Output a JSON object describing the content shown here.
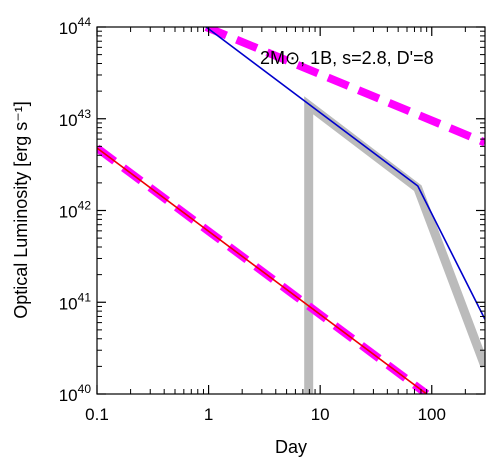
{
  "chart_data": {
    "type": "line",
    "title": "",
    "annotation": "2M⊙, 1B, s=2.8, D'=8",
    "xlabel": "Day",
    "ylabel": "Optical Luminosity [erg s⁻¹]",
    "xscale": "log",
    "yscale": "log",
    "xlim": [
      0.1,
      300
    ],
    "ylim": [
      1e+40,
      1e+44
    ],
    "x_ticks": [
      {
        "value": 0.1,
        "label": "0.1"
      },
      {
        "value": 1,
        "label": "1"
      },
      {
        "value": 10,
        "label": "10"
      },
      {
        "value": 100,
        "label": "100"
      }
    ],
    "y_ticks": [
      {
        "value": 1e+40,
        "base": "10",
        "exp": "40"
      },
      {
        "value": 1e+41,
        "base": "10",
        "exp": "41"
      },
      {
        "value": 1e+42,
        "base": "10",
        "exp": "42"
      },
      {
        "value": 1e+43,
        "base": "10",
        "exp": "43"
      },
      {
        "value": 1e+44,
        "base": "10",
        "exp": "44"
      }
    ],
    "grid": false,
    "legend": "none",
    "series": [
      {
        "style": "thick-gray",
        "color": "#bbbbbb",
        "points": [
          [
            7.9,
            1e+40
          ],
          [
            7.9,
            1.4e+43
          ],
          [
            75,
            1.75e+42
          ],
          [
            300,
            2e+40
          ]
        ]
      },
      {
        "style": "dashed",
        "color": "#ff00ff",
        "points": [
          [
            0.95,
            1e+44
          ],
          [
            300,
            5.5e+42
          ]
        ]
      },
      {
        "style": "dashed",
        "color": "#ff00ff",
        "points": [
          [
            0.1,
            4.8e+42
          ],
          [
            90,
            1e+40
          ]
        ]
      },
      {
        "style": "solid",
        "color": "#0000cc",
        "points": [
          [
            0.95,
            1e+44
          ],
          [
            75,
            1.85e+42
          ],
          [
            300,
            6.5e+40
          ]
        ]
      },
      {
        "style": "solid",
        "color": "#ee0000",
        "points": [
          [
            0.1,
            4.8e+42
          ],
          [
            90,
            1e+40
          ]
        ]
      }
    ]
  }
}
